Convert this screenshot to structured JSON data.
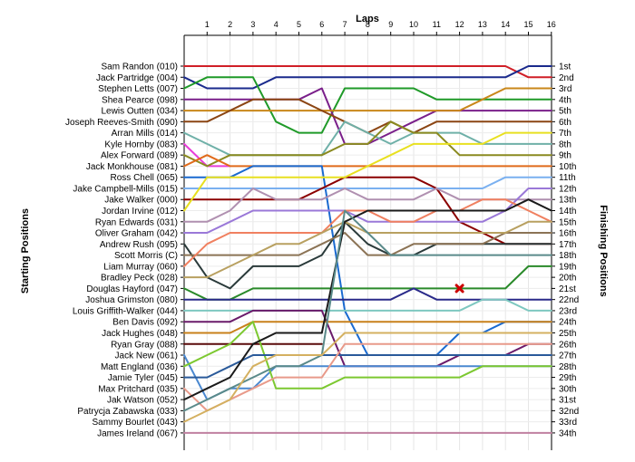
{
  "chart_data": {
    "type": "line",
    "title": "Laps",
    "ylabel_left": "Starting Positions",
    "ylabel_right": "Finishing Positions",
    "x": [
      0,
      1,
      2,
      3,
      4,
      5,
      6,
      7,
      8,
      9,
      10,
      11,
      12,
      13,
      14,
      15,
      16
    ],
    "x_tick_labels": [
      "1",
      "2",
      "3",
      "4",
      "5",
      "6",
      "7",
      "8",
      "9",
      "10",
      "11",
      "12",
      "13",
      "14",
      "15",
      "16"
    ],
    "drivers": [
      "Sam Randon (010)",
      "Jack Partridge (004)",
      "Stephen Letts (007)",
      "Shea Pearce (098)",
      "Lewis Outten (034)",
      "Joseph Reeves-Smith (090)",
      "Arran Mills (014)",
      "Kyle Hornby (083)",
      "Alex Forward (089)",
      "Jack Monkhouse (081)",
      "Ross Chell (065)",
      "Jake Campbell-Mills (015)",
      "Jake Walker (000)",
      "Jordan Irvine (012)",
      "Ryan Edwards (031)",
      "Oliver Graham (042)",
      "Andrew Rush (095)",
      "Scott Morris (C)",
      "Liam Murray (060)",
      "Bradley Peck (028)",
      "Douglas Hayford (047)",
      "Joshua Grimston (080)",
      "Louis Griffith-Walker (044)",
      "Ben Davis (092)",
      "Jack Hughes (048)",
      "Ryan Gray (088)",
      "Jack New (061)",
      "Matt England (036)",
      "Jamie Tyler (045)",
      "Max Pritchard (035)",
      "Jak Watson (052)",
      "Patrycja Zabawska (033)",
      "Sammy Bourlet (043)",
      "James Ireland (067)"
    ],
    "finishing_labels": [
      "1st",
      "2nd",
      "3rd",
      "4th",
      "5th",
      "6th",
      "7th",
      "8th",
      "9th",
      "10th",
      "11th",
      "12th",
      "13th",
      "14th",
      "15th",
      "16th",
      "17th",
      "18th",
      "19th",
      "20th",
      "21st",
      "22nd",
      "23rd",
      "24th",
      "25th",
      "26th",
      "27th",
      "28th",
      "29th",
      "30th",
      "31st",
      "32nd",
      "33rd",
      "34th"
    ],
    "series": [
      {
        "color": "#d01f27",
        "width": 2,
        "positions": [
          1,
          1,
          1,
          1,
          1,
          1,
          1,
          1,
          1,
          1,
          1,
          1,
          1,
          1,
          1,
          2,
          2
        ]
      },
      {
        "color": "#1a2a8c",
        "width": 2,
        "positions": [
          2,
          3,
          3,
          3,
          2,
          2,
          2,
          2,
          2,
          2,
          2,
          2,
          2,
          2,
          2,
          1,
          1
        ]
      },
      {
        "color": "#1f9a28",
        "width": 2,
        "positions": [
          3,
          2,
          2,
          2,
          6,
          7,
          7,
          3,
          3,
          3,
          3,
          4,
          4,
          4,
          4,
          4,
          4
        ]
      },
      {
        "color": "#7a1f8a",
        "width": 2,
        "positions": [
          4,
          4,
          4,
          4,
          4,
          4,
          3,
          8,
          8,
          7,
          6,
          5,
          5,
          5,
          5,
          5,
          5
        ]
      },
      {
        "color": "#c9871a",
        "width": 2,
        "positions": [
          5,
          5,
          5,
          5,
          5,
          5,
          5,
          5,
          5,
          5,
          5,
          5,
          5,
          4,
          3,
          3,
          3
        ]
      },
      {
        "color": "#8b4513",
        "width": 2,
        "positions": [
          6,
          6,
          5,
          4,
          4,
          4,
          5,
          6,
          7,
          6,
          7,
          6,
          6,
          6,
          6,
          6,
          6
        ]
      },
      {
        "color": "#6fb0a8",
        "width": 2,
        "positions": [
          7,
          8,
          9,
          9,
          9,
          9,
          9,
          6,
          7,
          8,
          7,
          7,
          7,
          8,
          8,
          8,
          8
        ]
      },
      {
        "color": "#e83dd8",
        "width": 2,
        "positions": [
          8,
          10,
          10
        ]
      },
      {
        "color": "#8a8a20",
        "width": 2,
        "positions": [
          9,
          10,
          9,
          9,
          9,
          9,
          9,
          8,
          8,
          6,
          7,
          7,
          9,
          9,
          9,
          9,
          9
        ]
      },
      {
        "color": "#e06a1a",
        "width": 2,
        "positions": [
          10,
          9,
          10,
          10,
          10,
          10,
          10,
          10,
          10,
          10,
          10,
          10,
          10,
          10,
          10,
          10,
          10
        ]
      },
      {
        "color": "#1a6ad0",
        "width": 2,
        "positions": [
          11,
          11,
          11,
          10,
          10,
          10,
          10,
          23,
          27,
          27,
          27,
          27,
          25,
          25,
          24,
          24,
          24
        ]
      },
      {
        "color": "#7ab0f0",
        "width": 2,
        "positions": [
          12,
          12,
          12,
          12,
          12,
          12,
          12,
          12,
          12,
          12,
          12,
          12,
          12,
          12,
          11,
          11,
          11
        ]
      },
      {
        "color": "#8b0000",
        "width": 2,
        "positions": [
          13,
          13,
          13,
          13,
          13,
          13,
          12,
          11,
          11,
          11,
          11,
          12,
          15,
          16,
          17,
          17,
          17
        ]
      },
      {
        "color": "#e8e020",
        "width": 2,
        "positions": [
          14,
          11,
          11,
          11,
          11,
          11,
          11,
          11,
          10,
          9,
          8,
          8,
          8,
          8,
          7,
          7,
          7
        ]
      },
      {
        "color": "#b090b0",
        "width": 2,
        "positions": [
          15,
          15,
          14,
          12,
          13,
          13,
          13,
          12,
          13,
          13,
          13,
          12,
          13,
          13,
          13,
          13,
          13
        ]
      },
      {
        "color": "#9a78d8",
        "width": 2,
        "positions": [
          16,
          16,
          15,
          14,
          14,
          14,
          14,
          14,
          15,
          15,
          15,
          15,
          15,
          15,
          14,
          12,
          12
        ]
      },
      {
        "color": "#2a3a3a",
        "width": 2,
        "positions": [
          17,
          20,
          21,
          19,
          19,
          19,
          18,
          15,
          17,
          18,
          18,
          17,
          17,
          17,
          17,
          17,
          17
        ]
      },
      {
        "color": "#8b7355",
        "width": 2,
        "positions": [
          18,
          18,
          18,
          18,
          18,
          18,
          17,
          16,
          18,
          18,
          17,
          17,
          17,
          17,
          16,
          16,
          16
        ]
      },
      {
        "color": "#f08060",
        "width": 2,
        "positions": [
          19,
          17,
          16,
          16,
          16,
          16,
          16,
          14,
          14,
          15,
          15,
          14,
          14,
          13,
          13,
          14,
          15
        ]
      },
      {
        "color": "#b8a060",
        "width": 2,
        "positions": [
          20,
          20,
          19,
          18,
          17,
          17,
          16,
          15,
          16,
          16,
          16,
          16,
          16,
          16,
          16,
          15,
          15
        ]
      },
      {
        "color": "#2a8a2a",
        "width": 2,
        "positions": [
          21,
          22,
          22,
          21,
          21,
          21,
          21,
          21,
          21,
          21,
          21,
          21,
          21,
          21,
          21,
          19,
          19
        ]
      },
      {
        "color": "#2a2a8a",
        "width": 2,
        "positions": [
          22,
          22,
          22,
          22,
          22,
          22,
          22,
          22,
          22,
          22,
          21,
          22,
          22,
          22,
          22,
          22,
          22
        ]
      },
      {
        "color": "#7ec8c0",
        "width": 2,
        "positions": [
          23,
          23,
          23,
          23,
          23,
          23,
          23,
          23,
          23,
          23,
          23,
          23,
          23,
          22,
          22,
          23,
          23
        ]
      },
      {
        "color": "#6a1a6a",
        "width": 2,
        "positions": [
          24,
          24,
          24,
          23,
          23,
          23,
          23,
          28,
          28,
          28,
          28,
          28,
          27,
          27,
          27,
          26,
          26
        ]
      },
      {
        "color": "#c8801a",
        "width": 2,
        "positions": [
          25,
          25,
          25,
          24,
          24,
          24,
          24,
          24,
          24,
          24,
          24,
          24,
          24,
          24,
          24,
          24,
          24
        ]
      },
      {
        "color": "#5a0a0a",
        "width": 2,
        "positions": [
          26,
          26,
          26,
          26,
          26,
          26,
          26
        ]
      },
      {
        "color": "#4a88d0",
        "width": 2,
        "positions": [
          27,
          31,
          30,
          30,
          28,
          28,
          28,
          28,
          28,
          28,
          28,
          28,
          28,
          28,
          28,
          28,
          28
        ]
      },
      {
        "color": "#7cc830",
        "width": 2,
        "positions": [
          28,
          27,
          26,
          24,
          30,
          30,
          30,
          29,
          29,
          29,
          29,
          29,
          29,
          28,
          28,
          28,
          28
        ]
      },
      {
        "color": "#2a5a9a",
        "width": 2,
        "positions": [
          29,
          29,
          28,
          27,
          27,
          27,
          27,
          27,
          27,
          27,
          27,
          27,
          27,
          27,
          27,
          27,
          27
        ]
      },
      {
        "color": "#e89a8a",
        "width": 2,
        "positions": [
          30,
          32,
          31,
          30,
          29,
          29,
          29,
          26,
          26,
          26,
          26,
          26,
          26,
          26,
          26,
          26,
          26
        ]
      },
      {
        "color": "#1a1a1a",
        "width": 2,
        "positions": [
          31,
          30,
          29,
          26,
          25,
          25,
          25,
          15,
          14,
          14,
          14,
          14,
          14,
          14,
          14,
          13,
          14
        ]
      },
      {
        "color": "#5a8a8a",
        "width": 2,
        "positions": [
          32,
          31,
          30,
          29,
          28,
          28,
          27,
          14,
          16,
          18,
          18,
          18,
          18,
          18,
          18,
          18,
          18
        ]
      },
      {
        "color": "#d4b060",
        "width": 2,
        "positions": [
          33,
          32,
          31,
          28,
          27,
          27,
          27,
          25,
          25,
          25,
          25,
          25,
          25,
          25,
          25,
          25,
          25
        ]
      },
      {
        "color": "#c080a0",
        "width": 2,
        "positions": [
          34,
          34,
          34,
          34,
          34,
          34,
          34,
          34,
          34,
          34,
          34,
          34,
          34,
          34,
          34,
          34,
          34
        ]
      }
    ],
    "markers": [
      {
        "type": "crash",
        "lap": 12,
        "position": 21,
        "color": "#cc0000"
      }
    ]
  }
}
